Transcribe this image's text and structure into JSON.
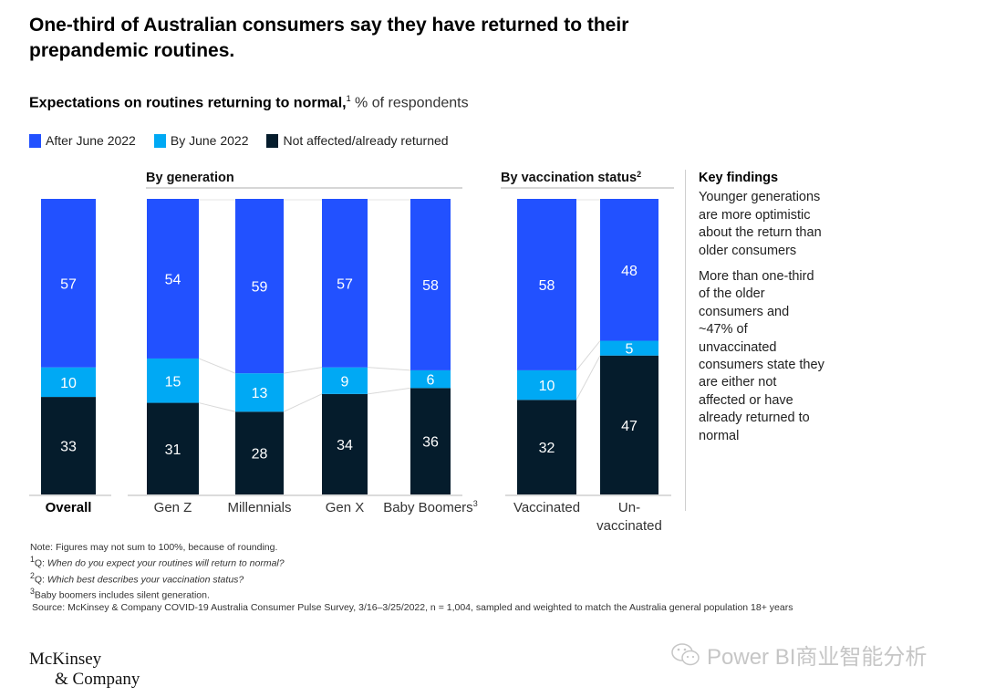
{
  "header": {
    "title": "One-third of Australian consumers say they have returned to their prepandemic routines.",
    "subtitle_bold": "Expectations on routines returning to normal,",
    "subtitle_sup": "1",
    "subtitle_unit": " % of respondents"
  },
  "legend": [
    {
      "label": "After June 2022",
      "color": "#2251ff"
    },
    {
      "label": "By June 2022",
      "color": "#00a9f4"
    },
    {
      "label": "Not affected/already returned",
      "color": "#051c2c"
    }
  ],
  "chart_data": {
    "type": "bar",
    "stacked": true,
    "title": "Expectations on routines returning to normal, % of respondents",
    "xlabel": "",
    "ylabel": "% of respondents",
    "ylim": [
      0,
      100
    ],
    "grid": false,
    "legend_position": "top-left",
    "groups": [
      {
        "label": "",
        "categories": [
          "Overall"
        ]
      },
      {
        "label": "By generation",
        "categories": [
          "Gen Z",
          "Millennials",
          "Gen X",
          "Baby Boomers"
        ]
      },
      {
        "label": "By vaccination status",
        "label_sup": "2",
        "categories": [
          "Vaccinated",
          "Un-vaccinated"
        ]
      }
    ],
    "categories": [
      "Overall",
      "Gen Z",
      "Millennials",
      "Gen X",
      "Baby Boomers",
      "Vaccinated",
      "Un-vaccinated"
    ],
    "category_labels": [
      {
        "text": "Overall",
        "sup": "",
        "bold": true
      },
      {
        "text": "Gen Z",
        "sup": ""
      },
      {
        "text": "Millennials",
        "sup": ""
      },
      {
        "text": "Gen X",
        "sup": ""
      },
      {
        "text": "Baby Boomers",
        "sup": "3"
      },
      {
        "text": "Vaccinated",
        "sup": ""
      },
      {
        "text": "Un-",
        "text2": "vaccinated",
        "sup": ""
      }
    ],
    "series": [
      {
        "name": "Not affected/already returned",
        "color": "#051c2c",
        "values": [
          33,
          31,
          28,
          34,
          36,
          32,
          47
        ]
      },
      {
        "name": "By June 2022",
        "color": "#00a9f4",
        "values": [
          10,
          15,
          13,
          9,
          6,
          10,
          5
        ]
      },
      {
        "name": "After June 2022",
        "color": "#2251ff",
        "values": [
          57,
          54,
          59,
          57,
          58,
          58,
          48
        ]
      }
    ]
  },
  "key_findings": {
    "heading": "Key findings",
    "items": [
      "Younger generations are more optimistic about the return than older consumers",
      "More than one-third of the older consumers and ~47% of unvaccinated consumers state they are either not affected or have already returned to normal"
    ]
  },
  "notes": {
    "note": "Note: Figures may not sum to 100%, because of rounding.",
    "fn1_mark": "1",
    "fn1_prefix": "Q: ",
    "fn1_text": "When do you expect your routines will return to normal?",
    "fn2_mark": "2",
    "fn2_prefix": "Q: ",
    "fn2_text": "Which best describes your vaccination status?",
    "fn3_mark": "3",
    "fn3_text": "Baby boomers includes silent generation.",
    "source": "Source: McKinsey & Company COVID-19 Australia Consumer Pulse Survey, 3/16–3/25/2022, n = 1,004, sampled and weighted to match the Australia general population 18+ years"
  },
  "logo": {
    "line1": "McKinsey",
    "line2": "& Company"
  },
  "watermark": {
    "text": "Power BI商业智能分析",
    "icon": "wechat-icon"
  }
}
